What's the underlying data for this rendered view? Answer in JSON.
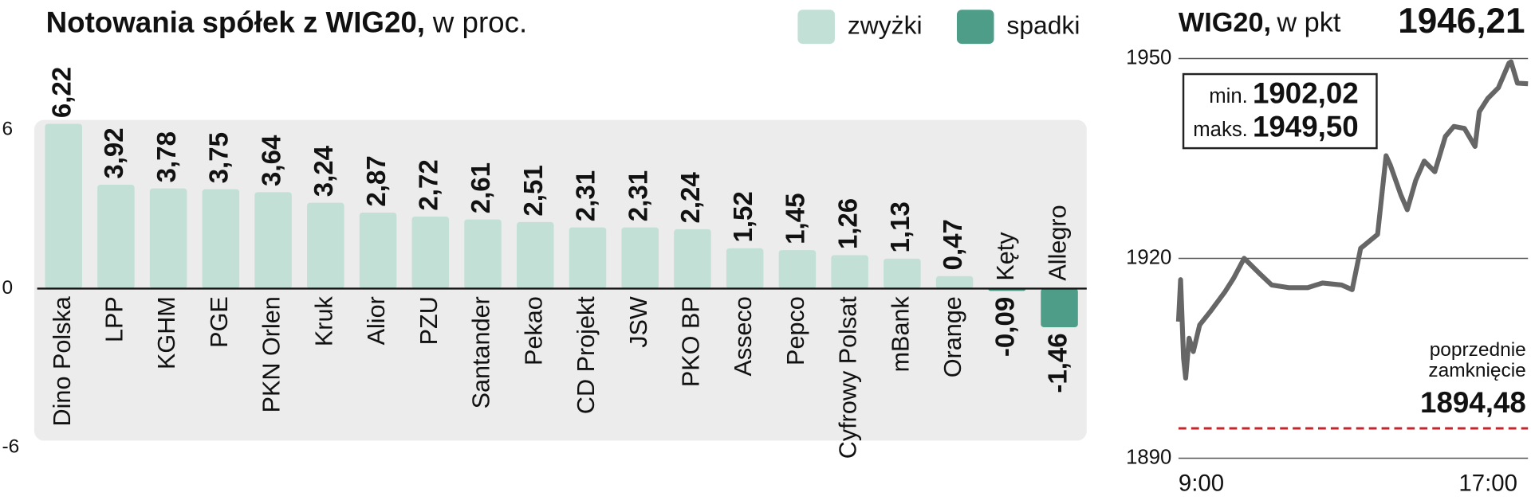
{
  "chart_data": [
    {
      "type": "bar",
      "title": "Notowania spółek z WIG20,",
      "subtitle": "w proc.",
      "categories": [
        "Dino Polska",
        "LPP",
        "KGHM",
        "PGE",
        "PKN Orlen",
        "Kruk",
        "Alior",
        "PZU",
        "Santander",
        "Pekao",
        "CD Projekt",
        "JSW",
        "PKO BP",
        "Asseco",
        "Pepco",
        "Cyfrowy Polsat",
        "mBank",
        "Orange",
        "Kęty",
        "Allegro"
      ],
      "series": [
        {
          "name": "zwyżki",
          "color": "#c3e0d6",
          "values": [
            6.22,
            3.92,
            3.78,
            3.75,
            3.64,
            3.24,
            2.87,
            2.72,
            2.61,
            2.51,
            2.31,
            2.31,
            2.24,
            1.52,
            1.45,
            1.26,
            1.13,
            0.47,
            null,
            null
          ],
          "value_labels": [
            "6,22",
            "3,92",
            "3,78",
            "3,75",
            "3,64",
            "3,24",
            "2,87",
            "2,72",
            "2,61",
            "2,51",
            "2,31",
            "2,31",
            "2,24",
            "1,52",
            "1,45",
            "1,26",
            "1,13",
            "0,47",
            null,
            null
          ]
        },
        {
          "name": "spadki",
          "color": "#4e9d89",
          "values": [
            null,
            null,
            null,
            null,
            null,
            null,
            null,
            null,
            null,
            null,
            null,
            null,
            null,
            null,
            null,
            null,
            null,
            null,
            -0.09,
            -1.46
          ],
          "value_labels": [
            null,
            null,
            null,
            null,
            null,
            null,
            null,
            null,
            null,
            null,
            null,
            null,
            null,
            null,
            null,
            null,
            null,
            null,
            "-0,09",
            "-1,46"
          ]
        }
      ],
      "ylim": [
        -6,
        6
      ],
      "yticks": [
        -6,
        0,
        6
      ]
    },
    {
      "type": "line",
      "title": "WIG20,",
      "subtitle": "w pkt",
      "last_value": {
        "value": 1946.21,
        "label": "1946,21"
      },
      "x": [
        9.0,
        9.05,
        9.12,
        9.17,
        9.25,
        9.35,
        9.5,
        9.75,
        10.1,
        10.3,
        10.55,
        10.9,
        11.2,
        11.6,
        12.05,
        12.4,
        12.85,
        13.1,
        13.3,
        13.7,
        13.9,
        14.0,
        14.25,
        14.4,
        14.6,
        14.8,
        15.05,
        15.3,
        15.5,
        15.75,
        16.0,
        16.1,
        16.3,
        16.55,
        16.8,
        16.85,
        17.0,
        17.25
      ],
      "values": [
        1910.5,
        1916.8,
        1905,
        1902.02,
        1908,
        1906,
        1910,
        1912,
        1915,
        1917,
        1920,
        1917.8,
        1916,
        1915.6,
        1915.6,
        1916.3,
        1916,
        1915.3,
        1921.5,
        1923.6,
        1935.4,
        1934,
        1929.5,
        1927.3,
        1931.7,
        1934.6,
        1933,
        1938.3,
        1939.8,
        1939.5,
        1936.8,
        1942,
        1944,
        1945.6,
        1949.3,
        1949.5,
        1946.3,
        1946.21
      ],
      "color": "#666666",
      "xlim": [
        9,
        17.25
      ],
      "xticks": [
        {
          "value": 9,
          "label": "9:00"
        },
        {
          "value": 17,
          "label": "17:00"
        }
      ],
      "ylim": [
        1890,
        1950
      ],
      "yticks": [
        1890,
        1920,
        1950
      ],
      "grid": true,
      "min": {
        "text": "min.",
        "value": 1902.02,
        "label": "1902,02"
      },
      "max": {
        "text": "maks.",
        "value": 1949.5,
        "label": "1949,50"
      },
      "previous_close": {
        "text": [
          "poprzednie",
          "zamknięcie"
        ],
        "value": 1894.48,
        "label": "1894,48",
        "color": "#c0272d"
      }
    }
  ]
}
